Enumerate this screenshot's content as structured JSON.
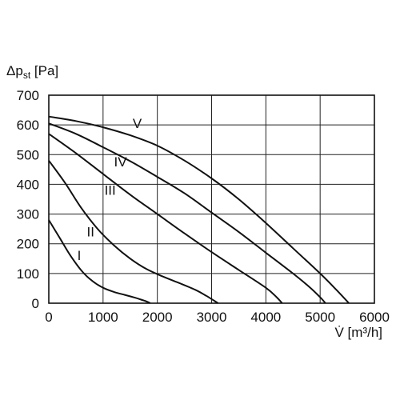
{
  "chart_data": {
    "type": "line",
    "xlabel": "V̇ [m³/h]",
    "ylabel": "Δp",
    "ylabel_sub": "st",
    "ylabel_unit": " [Pa]",
    "xlim": [
      0,
      6000
    ],
    "ylim": [
      0,
      700
    ],
    "x_ticks": [
      0,
      1000,
      2000,
      3000,
      4000,
      5000,
      6000
    ],
    "y_ticks": [
      0,
      100,
      200,
      300,
      400,
      500,
      600,
      700
    ],
    "x_tick_labels": [
      "0",
      "1000",
      "2000",
      "3000",
      "4000",
      "5000",
      "6000"
    ],
    "y_tick_labels": [
      "0",
      "100",
      "200",
      "300",
      "400",
      "500",
      "600",
      "700"
    ],
    "grid": true,
    "series": [
      {
        "name": "I",
        "x": [
          0,
          200,
          400,
          600,
          800,
          1000,
          1200,
          1400,
          1600,
          1700,
          1800,
          1870
        ],
        "y": [
          280,
          220,
          160,
          110,
          75,
          52,
          38,
          28,
          18,
          12,
          6,
          0
        ]
      },
      {
        "name": "II",
        "x": [
          0,
          300,
          600,
          900,
          1200,
          1500,
          1800,
          2100,
          2400,
          2700,
          2900,
          3050,
          3120
        ],
        "y": [
          480,
          405,
          320,
          250,
          195,
          150,
          115,
          90,
          68,
          45,
          25,
          8,
          0
        ]
      },
      {
        "name": "III",
        "x": [
          0,
          500,
          1000,
          1500,
          2000,
          2500,
          3000,
          3500,
          4000,
          4200,
          4300
        ],
        "y": [
          570,
          505,
          435,
          365,
          300,
          235,
          172,
          112,
          52,
          20,
          0
        ]
      },
      {
        "name": "IV",
        "x": [
          0,
          500,
          1000,
          1500,
          2000,
          2500,
          3000,
          3500,
          4000,
          4500,
          4800,
          5000,
          5100
        ],
        "y": [
          605,
          570,
          525,
          478,
          425,
          370,
          305,
          240,
          170,
          100,
          55,
          20,
          0
        ]
      },
      {
        "name": "V",
        "x": [
          0,
          500,
          1000,
          1500,
          2000,
          2500,
          3000,
          3500,
          4000,
          4500,
          5000,
          5300,
          5530
        ],
        "y": [
          628,
          613,
          592,
          565,
          530,
          480,
          420,
          350,
          270,
          185,
          100,
          45,
          0
        ]
      }
    ],
    "labels": [
      {
        "text": "I",
        "x": 560,
        "y": 145
      },
      {
        "text": "II",
        "x": 770,
        "y": 225
      },
      {
        "text": "III",
        "x": 1130,
        "y": 365
      },
      {
        "text": "IV",
        "x": 1320,
        "y": 460
      },
      {
        "text": "V",
        "x": 1630,
        "y": 590
      }
    ]
  }
}
